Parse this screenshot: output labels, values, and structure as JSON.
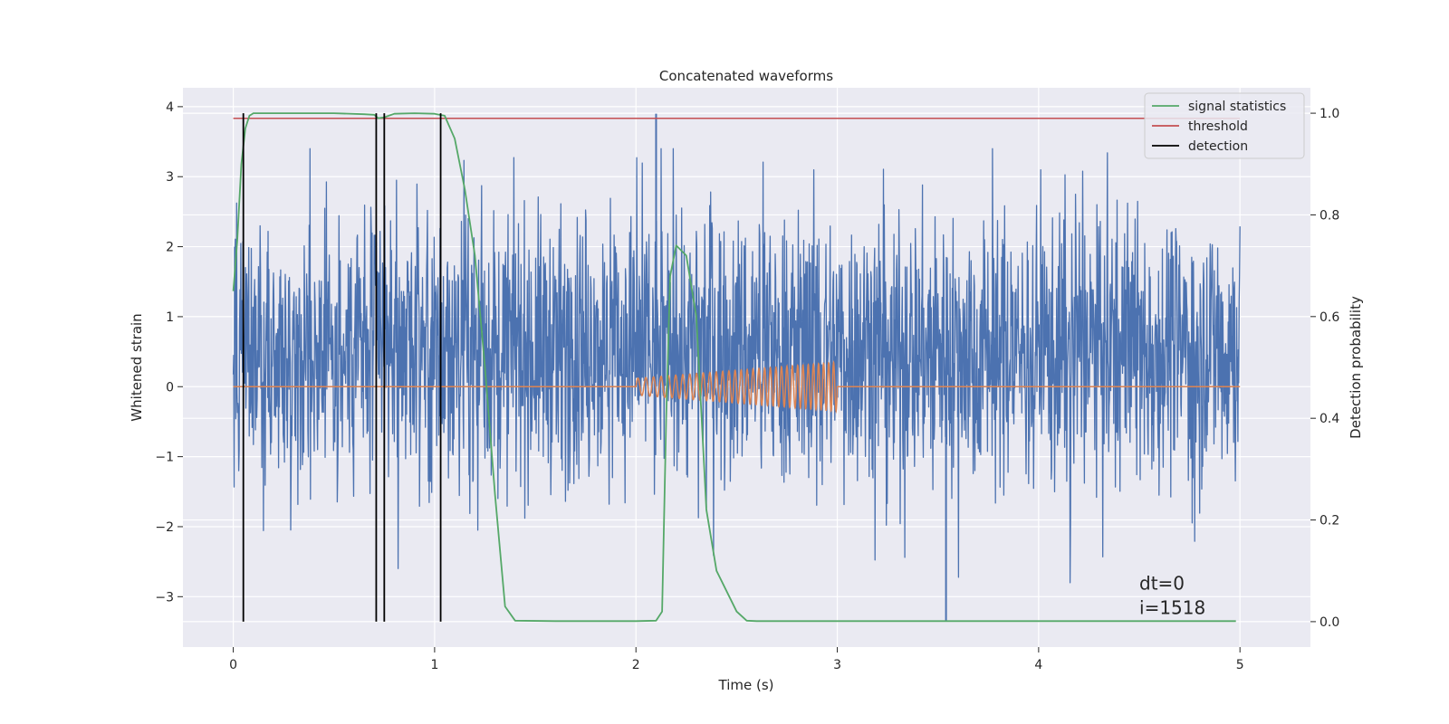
{
  "chart_data": {
    "type": "line",
    "title": "Concatenated waveforms",
    "xlabel": "Time (s)",
    "ylabel": "Whitened strain",
    "y2label": "Detection probability",
    "xlim": [
      -0.25,
      5.35
    ],
    "ylim": [
      -3.72,
      4.27
    ],
    "y2lim": [
      -0.05,
      1.05
    ],
    "x_ticks": [
      0,
      1,
      2,
      3,
      4,
      5
    ],
    "x_tick_labels": [
      "0",
      "1",
      "2",
      "3",
      "4",
      "5"
    ],
    "y_ticks": [
      -3,
      -2,
      -1,
      0,
      1,
      2,
      3,
      4
    ],
    "y_tick_labels": [
      "−3",
      "−2",
      "−1",
      "0",
      "1",
      "2",
      "3",
      "4"
    ],
    "y2_ticks": [
      0.0,
      0.2,
      0.4,
      0.6,
      0.8,
      1.0
    ],
    "y2_tick_labels": [
      "0.0",
      "0.2",
      "0.4",
      "0.6",
      "0.8",
      "1.0"
    ],
    "grid": true,
    "legend_position": "top-right",
    "legend": [
      {
        "label": "signal statistics",
        "color": "#55a868"
      },
      {
        "label": "threshold",
        "color": "#c44e52"
      },
      {
        "label": "detection",
        "color": "#000000"
      }
    ],
    "annotations": [
      "dt=0",
      "i=1518"
    ],
    "annotation_position": [
      4.5,
      -2.9
    ],
    "noise": {
      "x_range": [
        0,
        5
      ],
      "typical_range": [
        -1.3,
        2.4
      ],
      "peak_max": 3.9,
      "peak_min": -3.35,
      "color": "#4c72b0"
    },
    "injected_signal": {
      "x_range": [
        2.0,
        3.0
      ],
      "amplitude_start": 0.12,
      "amplitude_end": 0.35,
      "color": "#dd8452"
    },
    "threshold": {
      "value": 0.99,
      "x_range": [
        0,
        5
      ],
      "color": "#c44e52"
    },
    "detections": [
      0.05,
      0.71,
      0.75,
      1.03
    ],
    "signal_statistics": {
      "color": "#55a868",
      "x": [
        0,
        0.02,
        0.04,
        0.06,
        0.08,
        0.1,
        0.15,
        0.3,
        0.5,
        0.65,
        0.7,
        0.72,
        0.75,
        0.8,
        0.9,
        1.0,
        1.05,
        1.1,
        1.15,
        1.2,
        1.25,
        1.3,
        1.35,
        1.4,
        1.6,
        1.8,
        2.0,
        2.1,
        2.13,
        2.15,
        2.17,
        2.2,
        2.25,
        2.3,
        2.35,
        2.4,
        2.45,
        2.5,
        2.55,
        2.6,
        3.0,
        3.5,
        4.0,
        4.5,
        4.98
      ],
      "y": [
        0.65,
        0.75,
        0.9,
        0.97,
        0.995,
        1.0,
        1.0,
        1.0,
        1.0,
        0.998,
        0.997,
        0.99,
        0.992,
        0.999,
        1.0,
        0.999,
        0.995,
        0.95,
        0.85,
        0.72,
        0.5,
        0.25,
        0.03,
        0.002,
        0.001,
        0.001,
        0.001,
        0.002,
        0.02,
        0.4,
        0.68,
        0.74,
        0.72,
        0.6,
        0.22,
        0.1,
        0.06,
        0.02,
        0.002,
        0.001,
        0.001,
        0.001,
        0.001,
        0.001,
        0.001
      ]
    }
  }
}
